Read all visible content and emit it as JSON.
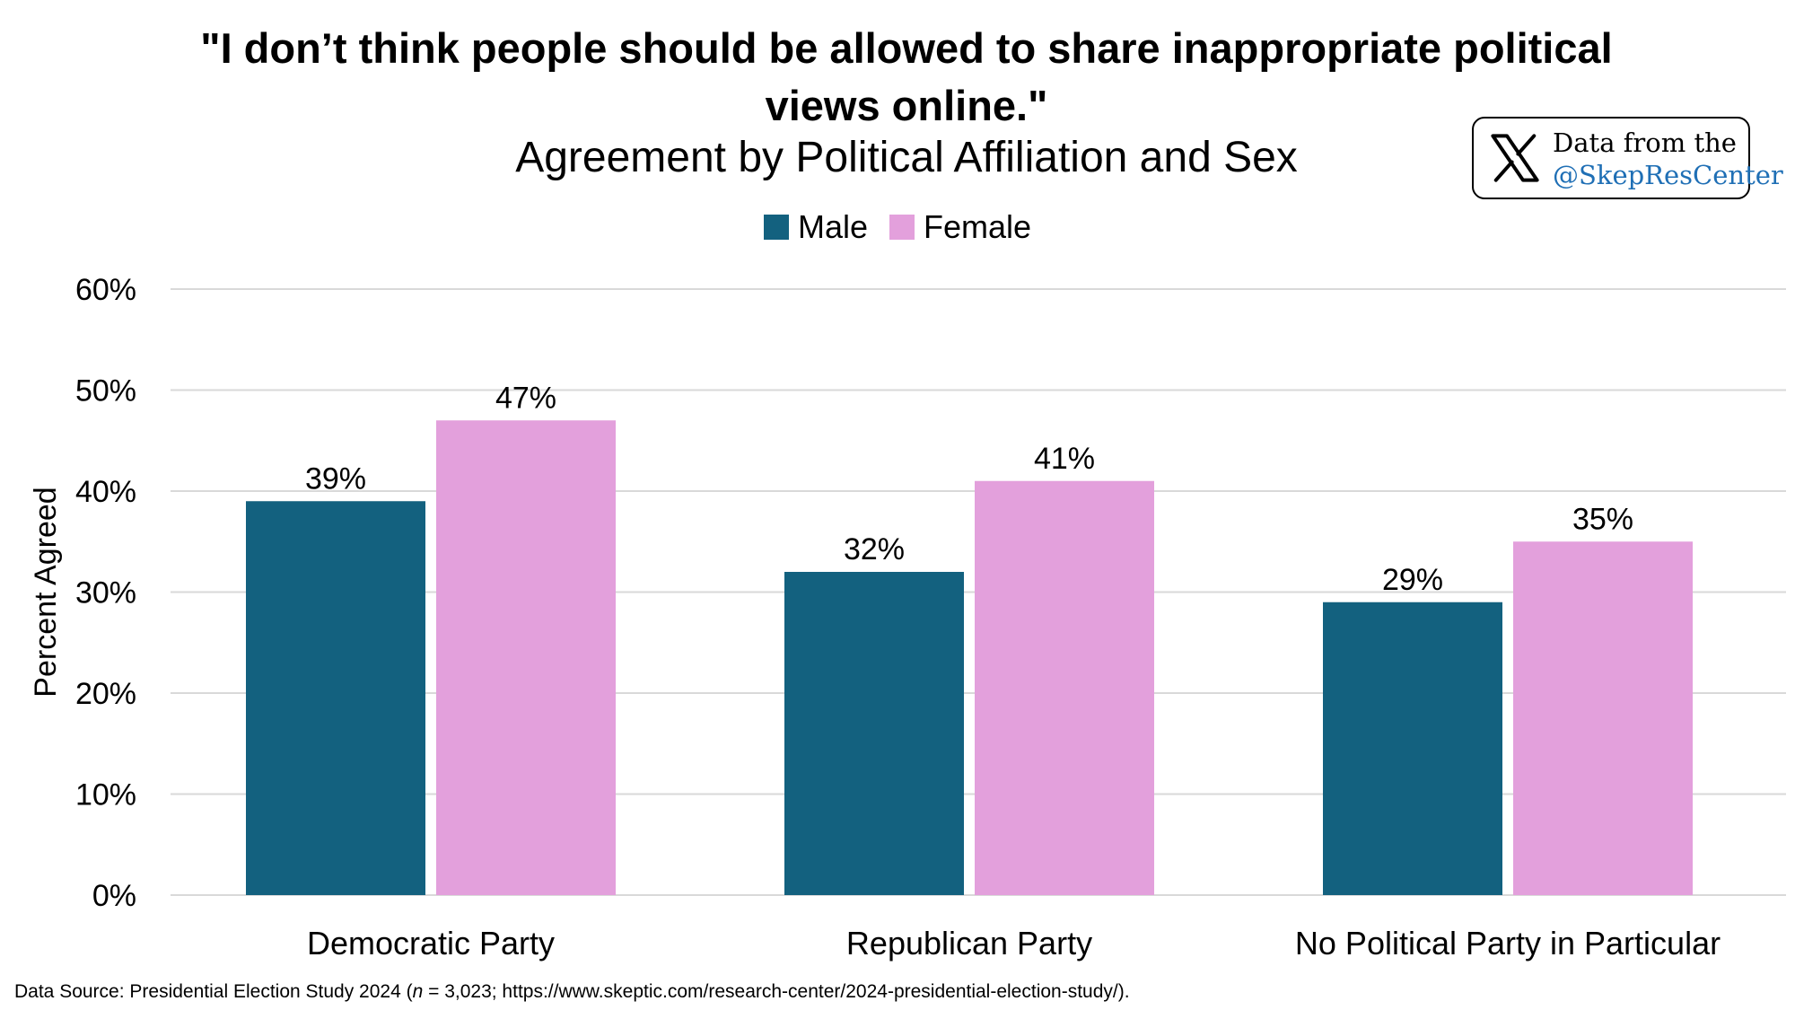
{
  "badge": {
    "icon": "x-logo-icon",
    "line1": "Data from the",
    "line2": "@SkepResCenter",
    "accent_color": "#1f6fb5"
  },
  "footer": {
    "prefix": "Data Source: Presidential Election Study 2024 (",
    "n_symbol": "n",
    "suffix": " = 3,023; https://www.skeptic.com/research-center/2024-presidential-election-study/)."
  },
  "chart_data": {
    "type": "bar",
    "title_line1": "\"I don’t think people should be allowed to share inappropriate political",
    "title_line2": "views online.\"",
    "subtitle": "Agreement by Political Affiliation and Sex",
    "ylabel": "Percent Agreed",
    "xlabel": "",
    "categories": [
      "Democratic Party",
      "Republican Party",
      "No Political Party in Particular"
    ],
    "series": [
      {
        "name": "Male",
        "color": "#13617f",
        "values": [
          39,
          32,
          29
        ],
        "labels": [
          "39%",
          "32%",
          "29%"
        ]
      },
      {
        "name": "Female",
        "color": "#e3a0dc",
        "values": [
          47,
          41,
          35
        ],
        "labels": [
          "47%",
          "41%",
          "35%"
        ]
      }
    ],
    "ylim": [
      0,
      60
    ],
    "yticks": [
      0,
      10,
      20,
      30,
      40,
      50,
      60
    ],
    "ytick_labels": [
      "0%",
      "10%",
      "20%",
      "30%",
      "40%",
      "50%",
      "60%"
    ],
    "grid": true,
    "legend_position": "top-center"
  }
}
